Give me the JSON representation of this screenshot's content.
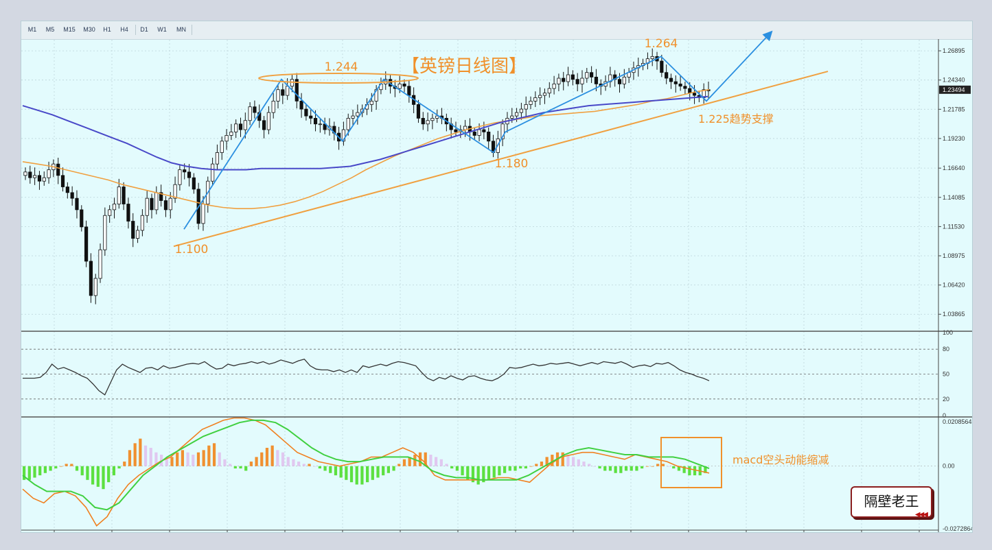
{
  "toolbar": {
    "timeframes": [
      "M1",
      "M5",
      "M15",
      "M30",
      "H1",
      "H4",
      "D1",
      "W1",
      "MN"
    ]
  },
  "colors": {
    "background": "#e3fbfd",
    "ma_slow": "#4848c8",
    "ma_fast": "#f0a040",
    "trend_line": "#f0a040",
    "annotation_blue": "#2b8fe0",
    "annotation_orange": "#f0902a",
    "macd_pos_up": "#f09030",
    "macd_pos_down": "#e0c8f0",
    "macd_neg": "#5ce040",
    "macd_signal": "#40d040",
    "macd_line": "#f08020",
    "rsi_line": "#333333"
  },
  "annotations": {
    "title": "【英镑日线图】",
    "low_1": "1.100",
    "high_1": "1.244",
    "low_2": "1.180",
    "high_2": "1.264",
    "support": "1.225趋势支撑",
    "macd_note": "macd空头动能缩减"
  },
  "watermark": {
    "text": "隔壁老王",
    "arrows": "◀◀◀"
  },
  "chart_data": [
    {
      "type": "candlestick",
      "title": "【英镑日线图】",
      "y_ticks": [
        "1.26895",
        "1.24340",
        "1.21785",
        "1.19230",
        "1.16640",
        "1.14085",
        "1.11530",
        "1.08975",
        "1.06420",
        "1.03865"
      ],
      "ylim": [
        1.025,
        1.278
      ],
      "current_price": "1.23494",
      "close": [
        1.163,
        1.158,
        1.16,
        1.155,
        1.158,
        1.165,
        1.17,
        1.16,
        1.15,
        1.145,
        1.14,
        1.13,
        1.115,
        1.085,
        1.055,
        1.07,
        1.095,
        1.125,
        1.13,
        1.135,
        1.15,
        1.135,
        1.12,
        1.105,
        1.112,
        1.125,
        1.14,
        1.13,
        1.145,
        1.138,
        1.13,
        1.14,
        1.152,
        1.165,
        1.163,
        1.158,
        1.148,
        1.118,
        1.135,
        1.155,
        1.17,
        1.18,
        1.19,
        1.195,
        1.198,
        1.205,
        1.2,
        1.208,
        1.22,
        1.215,
        1.208,
        1.2,
        1.215,
        1.225,
        1.235,
        1.23,
        1.238,
        1.244,
        1.225,
        1.218,
        1.212,
        1.21,
        1.205,
        1.205,
        1.2,
        1.203,
        1.197,
        1.19,
        1.2,
        1.21,
        1.212,
        1.215,
        1.218,
        1.222,
        1.225,
        1.235,
        1.24,
        1.244,
        1.238,
        1.236,
        1.24,
        1.238,
        1.23,
        1.222,
        1.21,
        1.205,
        1.208,
        1.21,
        1.212,
        1.21,
        1.205,
        1.2,
        1.198,
        1.2,
        1.203,
        1.198,
        1.195,
        1.2,
        1.198,
        1.19,
        1.18,
        1.192,
        1.205,
        1.21,
        1.212,
        1.215,
        1.218,
        1.222,
        1.225,
        1.228,
        1.23,
        1.232,
        1.236,
        1.24,
        1.245,
        1.242,
        1.248,
        1.244,
        1.24,
        1.245,
        1.25,
        1.246,
        1.24,
        1.238,
        1.242,
        1.248,
        1.244,
        1.24,
        1.246,
        1.25,
        1.254,
        1.256,
        1.258,
        1.262,
        1.264,
        1.26,
        1.25,
        1.245,
        1.242,
        1.24,
        1.238,
        1.236,
        1.232,
        1.23,
        1.228,
        1.235,
        1.234
      ],
      "ma_fast": [
        1.172,
        1.17,
        1.168,
        1.165,
        1.162,
        1.159,
        1.156,
        1.152,
        1.149,
        1.146,
        1.143,
        1.14,
        1.137,
        1.134,
        1.132,
        1.131,
        1.131,
        1.132,
        1.134,
        1.137,
        1.141,
        1.146,
        1.152,
        1.158,
        1.165,
        1.171,
        1.177,
        1.182,
        1.187,
        1.192,
        1.196,
        1.2,
        1.203,
        1.206,
        1.208,
        1.21,
        1.212,
        1.213,
        1.214,
        1.215,
        1.216,
        1.218,
        1.22,
        1.222,
        1.225,
        1.227,
        1.23,
        1.233,
        1.235
      ],
      "ma_slow": [
        1.221,
        1.217,
        1.213,
        1.208,
        1.203,
        1.198,
        1.193,
        1.188,
        1.182,
        1.176,
        1.171,
        1.168,
        1.166,
        1.165,
        1.165,
        1.165,
        1.166,
        1.166,
        1.166,
        1.166,
        1.166,
        1.167,
        1.168,
        1.171,
        1.174,
        1.178,
        1.182,
        1.186,
        1.19,
        1.194,
        1.198,
        1.202,
        1.206,
        1.209,
        1.212,
        1.215,
        1.217,
        1.219,
        1.221,
        1.222,
        1.223,
        1.224,
        1.225,
        1.226,
        1.227,
        1.228,
        1.229
      ],
      "trend_line": [
        [
          0,
          1.098
        ],
        [
          148,
          1.251
        ]
      ],
      "zigzag_up": [
        [
          0,
          1.113
        ],
        [
          22,
          1.244
        ],
        [
          35,
          1.19
        ],
        [
          50,
          1.244
        ],
        [
          67,
          1.18
        ],
        [
          75,
          1.198
        ],
        [
          127,
          1.264
        ],
        [
          137,
          1.225
        ],
        [
          158,
          1.285
        ]
      ],
      "support_level": 1.225
    },
    {
      "type": "line",
      "name": "RSI",
      "y_ticks": [
        "100",
        "80",
        "50",
        "20",
        "0"
      ],
      "ylim": [
        0,
        100
      ],
      "levels": [
        80,
        50,
        20
      ],
      "values": [
        45,
        45,
        45,
        46,
        52,
        62,
        56,
        58,
        55,
        52,
        48,
        45,
        38,
        30,
        25,
        40,
        55,
        62,
        58,
        55,
        52,
        57,
        58,
        55,
        60,
        57,
        58,
        60,
        62,
        63,
        62,
        65,
        60,
        56,
        57,
        62,
        60,
        62,
        63,
        65,
        63,
        65,
        62,
        64,
        67,
        65,
        63,
        66,
        68,
        60,
        56,
        55,
        55,
        53,
        55,
        52,
        55,
        52,
        60,
        58,
        60,
        62,
        60,
        63,
        65,
        64,
        62,
        60,
        52,
        45,
        42,
        46,
        44,
        48,
        45,
        43,
        47,
        48,
        45,
        43,
        42,
        45,
        50,
        58,
        57,
        58,
        60,
        62,
        60,
        61,
        63,
        62,
        63,
        64,
        62,
        60,
        62,
        64,
        62,
        65,
        64,
        63,
        65,
        62,
        58,
        60,
        61,
        59,
        63,
        62,
        64,
        60,
        55,
        52,
        50,
        47,
        45,
        42
      ]
    },
    {
      "type": "macd",
      "y_ticks": [
        "0.0208564",
        "0.00",
        "-0.0272864"
      ],
      "ylim": [
        -0.0272864,
        0.0208564
      ],
      "histogram": [
        -0.006,
        -0.006,
        -0.005,
        -0.004,
        -0.003,
        -0.002,
        -0.001,
        0.0,
        0.001,
        0.001,
        -0.002,
        -0.004,
        -0.006,
        -0.008,
        -0.009,
        -0.01,
        -0.007,
        -0.004,
        -0.001,
        0.002,
        0.007,
        0.01,
        0.012,
        0.009,
        0.008,
        0.006,
        0.005,
        0.003,
        0.004,
        0.006,
        0.007,
        0.006,
        0.005,
        0.006,
        0.007,
        0.009,
        0.01,
        0.006,
        0.003,
        0.001,
        -0.001,
        -0.001,
        -0.002,
        0.002,
        0.004,
        0.006,
        0.008,
        0.009,
        0.007,
        0.006,
        0.004,
        0.003,
        0.002,
        0.001,
        0.001,
        0.0,
        -0.001,
        -0.002,
        -0.003,
        -0.004,
        -0.005,
        -0.006,
        -0.007,
        -0.008,
        -0.008,
        -0.007,
        -0.006,
        -0.005,
        -0.004,
        -0.003,
        -0.002,
        0.001,
        0.003,
        0.004,
        0.005,
        0.006,
        0.006,
        0.005,
        0.004,
        0.003,
        0.001,
        -0.001,
        -0.002,
        -0.004,
        -0.006,
        -0.007,
        -0.008,
        -0.007,
        -0.006,
        -0.005,
        -0.004,
        -0.003,
        -0.002,
        -0.002,
        -0.001,
        -0.001,
        0.0,
        0.001,
        0.002,
        0.004,
        0.005,
        0.006,
        0.006,
        0.005,
        0.004,
        0.003,
        0.002,
        0.001,
        0.0,
        -0.001,
        -0.002,
        -0.002,
        -0.003,
        -0.003,
        -0.002,
        -0.002,
        -0.002,
        -0.001,
        0.0,
        0.0,
        0.001,
        0.001,
        0.0,
        -0.001,
        -0.002,
        -0.003,
        -0.004,
        -0.004,
        -0.004,
        -0.003
      ],
      "macd": [
        -0.01,
        -0.014,
        -0.016,
        -0.012,
        -0.011,
        -0.013,
        -0.018,
        -0.026,
        -0.022,
        -0.014,
        -0.008,
        -0.004,
        -0.001,
        0.002,
        0.004,
        0.008,
        0.012,
        0.016,
        0.018,
        0.02,
        0.021,
        0.021,
        0.02,
        0.018,
        0.014,
        0.01,
        0.006,
        0.004,
        0.002,
        0.001,
        0.0,
        0.001,
        0.002,
        0.004,
        0.004,
        0.006,
        0.008,
        0.006,
        0.002,
        -0.004,
        -0.006,
        -0.006,
        -0.006,
        -0.006,
        -0.006,
        -0.005,
        -0.005,
        -0.006,
        -0.007,
        -0.003,
        0.001,
        0.004,
        0.005,
        0.006,
        0.006,
        0.005,
        0.004,
        0.003,
        0.005,
        0.004,
        0.003,
        0.002,
        0.0,
        -0.001,
        -0.002,
        -0.003
      ],
      "signal": [
        -0.004,
        -0.008,
        -0.011,
        -0.011,
        -0.011,
        -0.013,
        -0.018,
        -0.019,
        -0.016,
        -0.01,
        -0.004,
        0.0,
        0.004,
        0.007,
        0.01,
        0.013,
        0.015,
        0.017,
        0.019,
        0.02,
        0.02,
        0.019,
        0.016,
        0.012,
        0.008,
        0.005,
        0.003,
        0.002,
        0.002,
        0.003,
        0.004,
        0.004,
        0.004,
        0.002,
        -0.002,
        -0.004,
        -0.005,
        -0.005,
        -0.006,
        -0.006,
        -0.006,
        -0.006,
        -0.004,
        -0.001,
        0.002,
        0.005,
        0.007,
        0.008,
        0.007,
        0.006,
        0.005,
        0.005,
        0.004,
        0.004,
        0.004,
        0.003,
        0.001,
        -0.001
      ]
    }
  ]
}
